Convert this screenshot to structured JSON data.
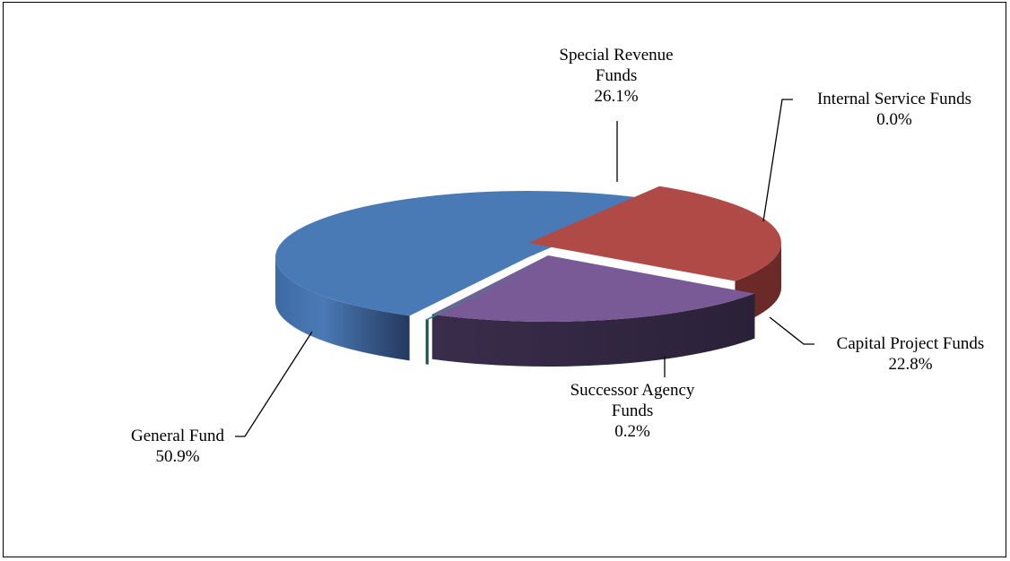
{
  "chart_data": {
    "type": "pie",
    "style": "3d-exploded",
    "title": "",
    "slices": [
      {
        "name_lines": [
          "General Fund"
        ],
        "value_label": "50.9%",
        "value": 50.9,
        "color": "#4a7ab5"
      },
      {
        "name_lines": [
          "Special Revenue",
          "Funds"
        ],
        "value_label": "26.1%",
        "value": 26.1,
        "color": "#b04a46"
      },
      {
        "name_lines": [
          "Internal Service Funds"
        ],
        "value_label": "0.0%",
        "value": 0.0,
        "color": "#8da74a"
      },
      {
        "name_lines": [
          "Capital Project Funds"
        ],
        "value_label": "22.8%",
        "value": 22.8,
        "color": "#7a5a96"
      },
      {
        "name_lines": [
          "Successor Agency",
          "Funds"
        ],
        "value_label": "0.2%",
        "value": 0.2,
        "color": "#2f8a8e"
      }
    ]
  }
}
